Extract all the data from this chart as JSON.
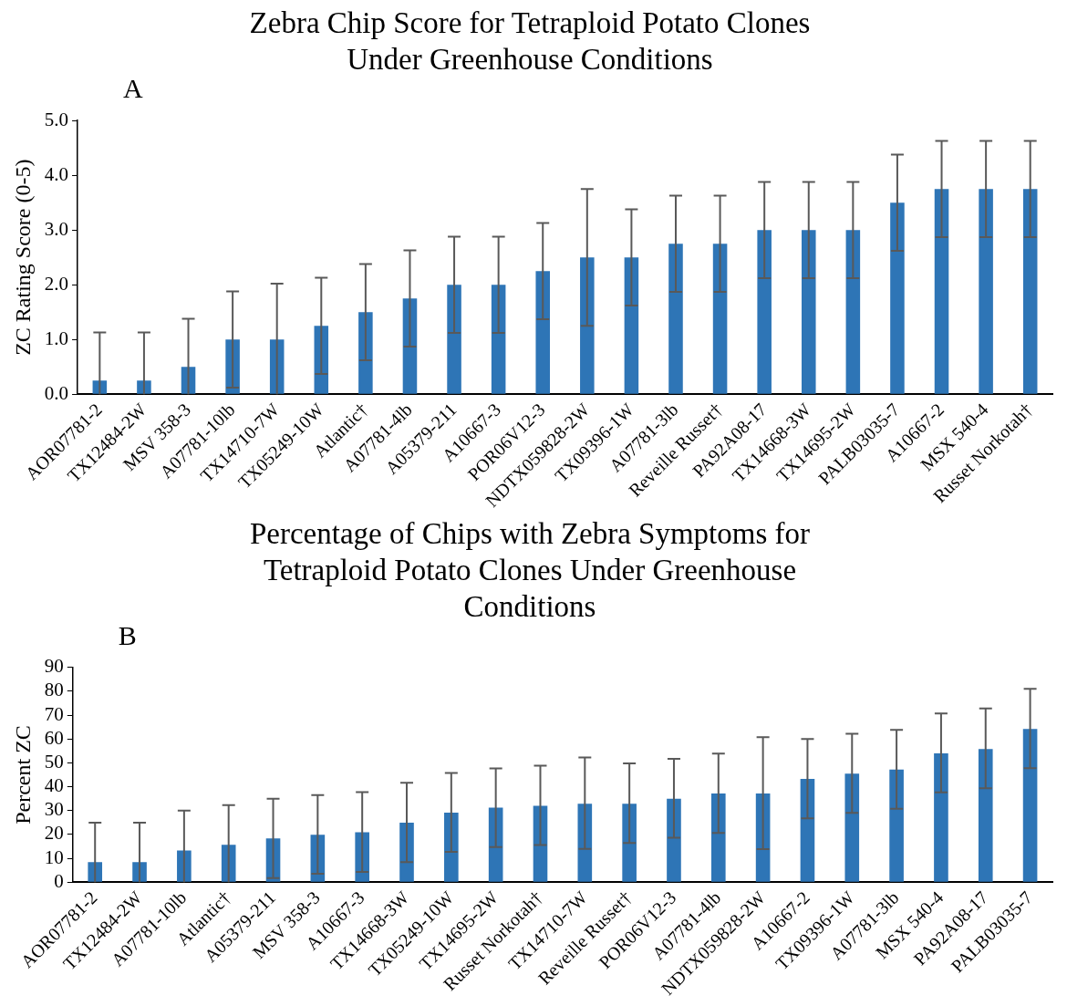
{
  "chart_data": [
    {
      "type": "bar",
      "title": "Zebra Chip Score for Tetraploid Potato Clones Under Greenhouse Conditions",
      "ylabel": "ZC Rating Score (0-5)",
      "annotations": [
        "A"
      ],
      "categories": [
        "AOR07781-2",
        "TX12484-2W",
        "MSV 358-3",
        "A07781-10lb",
        "TX14710-7W",
        "TX05249-10W",
        "Atlantic†",
        "A07781-4lb",
        "A05379-211",
        "A10667-3",
        "POR06V12-3",
        "NDTX059828-2W",
        "TX09396-1W",
        "A07781-3lb",
        "Reveille Russet†",
        "PA92A08-17",
        "TX14668-3W",
        "TX14695-2W",
        "PALB03035-7",
        "A10667-2",
        "MSX 540-4",
        "Russet Norkotah†"
      ],
      "values": [
        0.25,
        0.25,
        0.5,
        1.0,
        1.0,
        1.25,
        1.5,
        1.75,
        2.0,
        2.0,
        2.25,
        2.5,
        2.5,
        2.75,
        2.75,
        3.0,
        3.0,
        3.0,
        3.5,
        3.75,
        3.75,
        3.75
      ],
      "errors": [
        [
          0,
          1.13
        ],
        [
          0,
          1.13
        ],
        [
          0,
          1.38
        ],
        [
          0.12,
          1.88
        ],
        [
          0,
          2.02
        ],
        [
          0.37,
          2.13
        ],
        [
          0.62,
          2.38
        ],
        [
          0.87,
          2.63
        ],
        [
          1.12,
          2.88
        ],
        [
          1.12,
          2.88
        ],
        [
          1.37,
          3.13
        ],
        [
          1.25,
          3.75
        ],
        [
          1.62,
          3.38
        ],
        [
          1.87,
          3.63
        ],
        [
          1.87,
          3.63
        ],
        [
          2.12,
          3.88
        ],
        [
          2.12,
          3.88
        ],
        [
          2.12,
          3.88
        ],
        [
          2.62,
          4.38
        ],
        [
          2.87,
          4.63
        ],
        [
          2.87,
          4.63
        ],
        [
          2.87,
          4.63
        ]
      ],
      "color": "#2e75b6",
      "ylim": [
        0,
        5
      ],
      "yticks": [
        {
          "value": 0,
          "label": "0.0"
        },
        {
          "value": 1,
          "label": "1.0"
        },
        {
          "value": 2,
          "label": "2.0"
        },
        {
          "value": 3,
          "label": "3.0"
        },
        {
          "value": 4,
          "label": "4.0"
        },
        {
          "value": 5,
          "label": "5.0"
        }
      ],
      "grid": false,
      "legend": false
    },
    {
      "type": "bar",
      "title": "Percentage of Chips with Zebra Symptoms for Tetraploid Potato Clones Under Greenhouse Conditions",
      "ylabel": "Percent ZC",
      "annotations": [
        "B"
      ],
      "categories": [
        "AOR07781-2",
        "TX12484-2W",
        "A07781-10lb",
        "Atlantic†",
        "A05379-211",
        "MSV 358-3",
        "A10667-3",
        "TX14668-3W",
        "TX05249-10W",
        "TX14695-2W",
        "Russet Norkotah†",
        "TX14710-7W",
        "Reveille Russet†",
        "POR06V12-3",
        "A07781-4lb",
        "NDTX059828-2W",
        "A10667-2",
        "TX09396-1W",
        "A07781-3lb",
        "MSX 540-4",
        "PA92A08-17",
        "PALB03035-7"
      ],
      "values": [
        8.4,
        8.4,
        13.3,
        15.7,
        18.3,
        19.9,
        20.9,
        24.9,
        29.1,
        31.2,
        32.0,
        32.9,
        32.9,
        35.0,
        37.2,
        37.2,
        43.3,
        45.5,
        47.2,
        54.0,
        55.8,
        64.2
      ],
      "errors": [
        [
          0,
          24.9
        ],
        [
          0,
          24.9
        ],
        [
          0,
          30.0
        ],
        [
          0,
          32.3
        ],
        [
          1.7,
          35.0
        ],
        [
          3.5,
          36.5
        ],
        [
          4.3,
          37.7
        ],
        [
          8.4,
          41.7
        ],
        [
          12.7,
          45.8
        ],
        [
          14.7,
          47.7
        ],
        [
          15.6,
          48.8
        ],
        [
          13.9,
          52.3
        ],
        [
          16.4,
          49.8
        ],
        [
          18.6,
          51.7
        ],
        [
          20.6,
          53.9
        ],
        [
          13.8,
          60.8
        ],
        [
          26.7,
          60.0
        ],
        [
          29.0,
          62.2
        ],
        [
          30.8,
          63.8
        ],
        [
          37.6,
          70.7
        ],
        [
          39.4,
          72.8
        ],
        [
          47.8,
          81.0
        ]
      ],
      "color": "#2e75b6",
      "ylim": [
        0,
        90
      ],
      "yticks": [
        0,
        10,
        20,
        30,
        40,
        50,
        60,
        70,
        80,
        90
      ],
      "grid": false,
      "legend": false
    }
  ]
}
